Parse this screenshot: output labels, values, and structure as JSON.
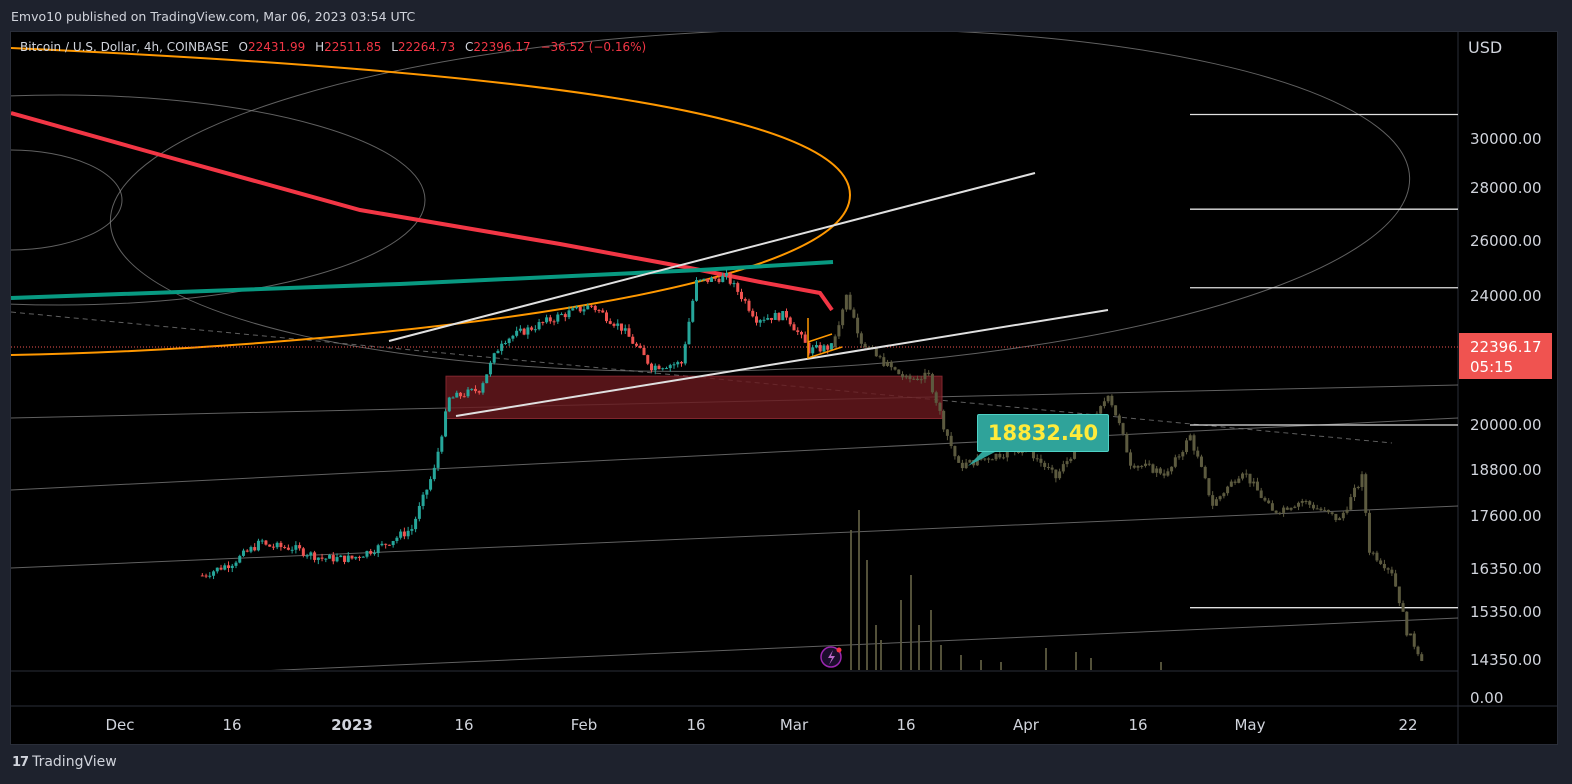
{
  "header": {
    "published": "Emvo10 published on TradingView.com, Mar 06, 2023 03:54 UTC"
  },
  "legend": {
    "symbol": "Bitcoin / U.S. Dollar, 4h, COINBASE",
    "o_label": "O",
    "o_value": "22431.99",
    "h_label": "H",
    "h_value": "22511.85",
    "l_label": "L",
    "l_value": "22264.73",
    "c_label": "C",
    "c_value": "22396.17",
    "change": "−36.52 (−0.16%)"
  },
  "currency": "USD",
  "price_tag": {
    "price": "22396.17",
    "countdown": "05:15"
  },
  "callout": {
    "text": "18832.40"
  },
  "footer": {
    "brand": "TradingView",
    "logo_icon": "tradingview-logo-icon"
  },
  "colors": {
    "background": "#000000",
    "frame": "#1e222d",
    "up": "#26a69a",
    "down": "#ef5350",
    "price_line": "#f05350",
    "red_ma": "#f23645",
    "teal_ma": "#089981",
    "orange_curve": "#ff9800",
    "zone": "#6b1a1f",
    "callout": "#2fa39a",
    "projection": "#5c5a3f"
  },
  "chart_data": {
    "type": "candlestick",
    "y_axis_labels": [
      "30000.00",
      "28000.00",
      "26000.00",
      "24000.00",
      "20000.00",
      "18800.00",
      "17600.00",
      "16350.00",
      "15350.00",
      "14350.00",
      "0.00"
    ],
    "x_axis_labels": [
      "Dec",
      "16",
      "2023",
      "16",
      "Feb",
      "16",
      "Mar",
      "16",
      "Apr",
      "16",
      "May",
      "22"
    ],
    "last_price": 22396.17,
    "annotation_value": 18832.4,
    "price_path": [
      [
        "Nov 22",
        16200
      ],
      [
        "Nov 26",
        16500
      ],
      [
        "Nov 30",
        17000
      ],
      [
        "Dec 4",
        17100
      ],
      [
        "Dec 8",
        17200
      ],
      [
        "Dec 12",
        17200
      ],
      [
        "Dec 14",
        17800
      ],
      [
        "Dec 16",
        17000
      ],
      [
        "Dec 20",
        16900
      ],
      [
        "Dec 24",
        16850
      ],
      [
        "Dec 28",
        16600
      ],
      [
        "Jan 1",
        16600
      ],
      [
        "Jan 5",
        16900
      ],
      [
        "Jan 9",
        17300
      ],
      [
        "Jan 12",
        18800
      ],
      [
        "Jan 14",
        20800
      ],
      [
        "Jan 18",
        21100
      ],
      [
        "Jan 21",
        22600
      ],
      [
        "Jan 25",
        23000
      ],
      [
        "Jan 29",
        23400
      ],
      [
        "Feb 2",
        23700
      ],
      [
        "Feb 6",
        23000
      ],
      [
        "Feb 10",
        21800
      ],
      [
        "Feb 14",
        21900
      ],
      [
        "Feb 16",
        24500
      ],
      [
        "Feb 20",
        24700
      ],
      [
        "Feb 24",
        23300
      ],
      [
        "Feb 28",
        23400
      ],
      [
        "Mar 3",
        22300
      ],
      [
        "Mar 6",
        22396.17
      ]
    ],
    "projection_path": [
      [
        "Mar 6",
        22400
      ],
      [
        "Mar 8",
        24000
      ],
      [
        "Mar 10",
        22600
      ],
      [
        "Mar 12",
        22100
      ],
      [
        "Mar 16",
        21400
      ],
      [
        "Mar 19",
        21500
      ],
      [
        "Mar 21",
        20000
      ],
      [
        "Mar 23",
        18900
      ],
      [
        "Mar 28",
        19200
      ],
      [
        "Apr 1",
        19400
      ],
      [
        "Apr 5",
        18600
      ],
      [
        "Apr 8",
        19500
      ],
      [
        "Apr 10",
        20000
      ],
      [
        "Apr 12",
        21000
      ],
      [
        "Apr 15",
        19000
      ],
      [
        "Apr 20",
        18700
      ],
      [
        "Apr 23",
        19700
      ],
      [
        "Apr 26",
        17900
      ],
      [
        "Apr 30",
        18800
      ],
      [
        "May 4",
        17700
      ],
      [
        "May 8",
        18000
      ],
      [
        "May 13",
        17500
      ],
      [
        "May 16",
        18600
      ],
      [
        "May 17",
        16800
      ],
      [
        "May 20",
        16300
      ],
      [
        "May 22",
        14950
      ],
      [
        "May 24",
        14400
      ]
    ],
    "horizontal_levels": [
      31000,
      27200,
      24300,
      20000,
      15450
    ],
    "zone_range": [
      20200,
      21500
    ]
  }
}
